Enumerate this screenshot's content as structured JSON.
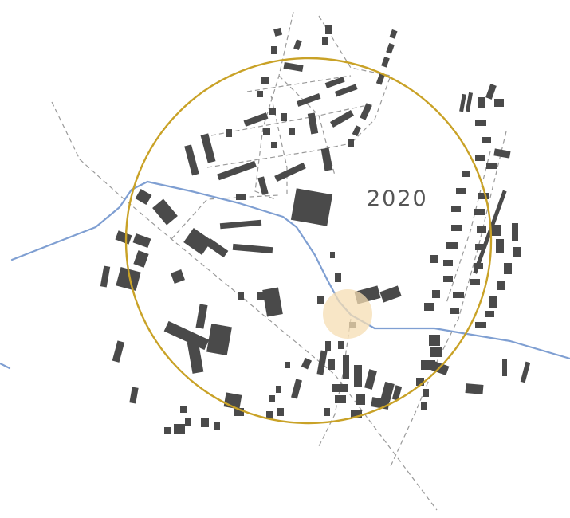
{
  "map": {
    "year_label": "2020",
    "colors": {
      "buffer_circle": "#c9a227",
      "river": "#7f9fd2",
      "roads": "#9a9a9a",
      "buildings": "#4a4a4a",
      "center_marker": "#f5deb3",
      "background": "#ffffff"
    }
  }
}
